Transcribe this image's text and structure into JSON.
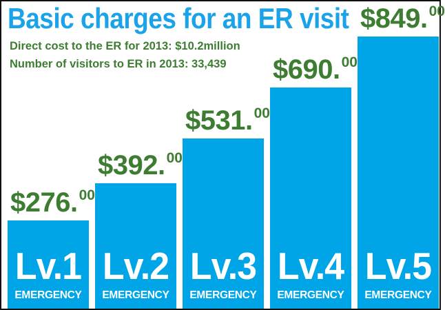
{
  "title": "Basic charges for an ER visit",
  "subtitles": [
    "Direct cost to the ER for 2013: $10.2million",
    "Number of visitors to ER in 2013: 33,439"
  ],
  "colors": {
    "bar": "#00a5e8",
    "title": "#1aa3e8",
    "text_green": "#3d7d32",
    "label_white": "#ffffff"
  },
  "chart_data": {
    "type": "bar",
    "title": "Basic charges for an ER visit",
    "categories": [
      "Lv.1",
      "Lv.2",
      "Lv.3",
      "Lv.4",
      "Lv.5"
    ],
    "category_sublabel": "EMERGENCY",
    "values": [
      276.0,
      392.0,
      531.0,
      690.0,
      849.0
    ],
    "value_labels": [
      {
        "main": "$276.",
        "cents": "00"
      },
      {
        "main": "$392.",
        "cents": "00"
      },
      {
        "main": "$531.",
        "cents": "00"
      },
      {
        "main": "$690.",
        "cents": "00"
      },
      {
        "main": "$849.",
        "cents": "00"
      }
    ],
    "xlabel": "",
    "ylabel": "",
    "ylim": [
      0,
      849
    ],
    "grid": false,
    "legend": "none"
  }
}
